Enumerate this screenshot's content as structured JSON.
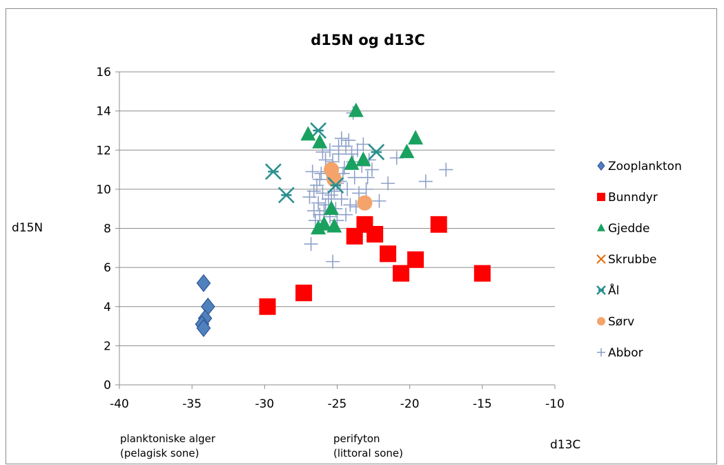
{
  "chart_data": {
    "type": "scatter",
    "title": "d15N og d13C",
    "xlabel": "d13C",
    "ylabel": "d15N",
    "xlim": [
      -40,
      -10
    ],
    "ylim": [
      0,
      16
    ],
    "xticks": [
      -40,
      -35,
      -30,
      -25,
      -20,
      -15,
      -10
    ],
    "yticks": [
      0,
      2,
      4,
      6,
      8,
      10,
      12,
      14,
      16
    ],
    "grid": "horizontal",
    "legend_position": "right",
    "annotations": [
      {
        "text": "planktoniske alger",
        "text2": "(pelagisk sone)"
      },
      {
        "text": "perifyton",
        "text2": "(littoral sone)"
      }
    ],
    "series": [
      {
        "name": "Zooplankton",
        "marker": "diamond",
        "color": "#4f81bd",
        "points": [
          [
            -34.2,
            5.2
          ],
          [
            -33.9,
            4.0
          ],
          [
            -34.1,
            3.4
          ],
          [
            -34.3,
            3.1
          ],
          [
            -34.2,
            2.9
          ]
        ]
      },
      {
        "name": "Bunndyr",
        "marker": "square",
        "color": "#ff0000",
        "points": [
          [
            -29.8,
            4.0
          ],
          [
            -27.3,
            4.7
          ],
          [
            -23.8,
            7.6
          ],
          [
            -23.1,
            8.2
          ],
          [
            -22.4,
            7.7
          ],
          [
            -21.5,
            6.7
          ],
          [
            -20.6,
            5.7
          ],
          [
            -19.6,
            6.4
          ],
          [
            -18.0,
            8.2
          ],
          [
            -15.0,
            5.7
          ]
        ]
      },
      {
        "name": "Gjedde",
        "marker": "triangle",
        "color": "#1aa160",
        "points": [
          [
            -27.0,
            12.8
          ],
          [
            -26.2,
            12.4
          ],
          [
            -23.7,
            14.0
          ],
          [
            -20.2,
            11.9
          ],
          [
            -19.6,
            12.6
          ],
          [
            -25.9,
            8.2
          ],
          [
            -26.3,
            8.0
          ],
          [
            -25.2,
            8.1
          ],
          [
            -24.0,
            11.3
          ],
          [
            -23.2,
            11.5
          ],
          [
            -25.4,
            9.0
          ]
        ]
      },
      {
        "name": "Skrubbe",
        "marker": "x",
        "color": "#e36c09",
        "points": []
      },
      {
        "name": "Ål",
        "marker": "asterisk",
        "color": "#2a8f8f",
        "points": [
          [
            -29.4,
            10.9
          ],
          [
            -28.5,
            9.7
          ],
          [
            -26.3,
            13.0
          ],
          [
            -22.3,
            11.9
          ],
          [
            -25.1,
            10.2
          ]
        ]
      },
      {
        "name": "Sørv",
        "marker": "circle",
        "color": "#f4a36a",
        "points": [
          [
            -23.1,
            9.3
          ],
          [
            -25.4,
            11.0
          ],
          [
            -25.2,
            10.5
          ]
        ]
      },
      {
        "name": "Abbor",
        "marker": "plus",
        "color": "#8ea0c9",
        "points": [
          [
            -26.8,
            7.2
          ],
          [
            -25.3,
            6.3
          ],
          [
            -23.9,
            13.9
          ],
          [
            -21.5,
            10.3
          ],
          [
            -20.9,
            11.6
          ],
          [
            -18.9,
            10.4
          ],
          [
            -17.5,
            11.0
          ],
          [
            -22.1,
            9.4
          ],
          [
            -23.0,
            10.0
          ],
          [
            -22.6,
            11.0
          ],
          [
            -24.2,
            12.5
          ],
          [
            -24.9,
            12.2
          ],
          [
            -25.8,
            11.5
          ],
          [
            -26.1,
            10.8
          ],
          [
            -26.4,
            10.2
          ],
          [
            -26.0,
            9.8
          ],
          [
            -25.6,
            9.5
          ],
          [
            -25.2,
            9.9
          ],
          [
            -24.8,
            10.4
          ],
          [
            -24.5,
            11.1
          ],
          [
            -24.0,
            11.8
          ],
          [
            -23.6,
            12.0
          ],
          [
            -23.3,
            11.2
          ],
          [
            -23.8,
            10.6
          ],
          [
            -24.3,
            10.0
          ],
          [
            -24.7,
            9.5
          ],
          [
            -25.1,
            9.0
          ],
          [
            -25.5,
            8.6
          ],
          [
            -25.9,
            8.9
          ],
          [
            -26.3,
            9.3
          ],
          [
            -26.6,
            9.9
          ],
          [
            -26.2,
            10.5
          ],
          [
            -25.7,
            10.9
          ],
          [
            -25.3,
            11.4
          ],
          [
            -24.9,
            11.8
          ],
          [
            -24.4,
            12.2
          ],
          [
            -23.9,
            11.4
          ],
          [
            -24.6,
            10.8
          ],
          [
            -25.0,
            10.3
          ],
          [
            -25.4,
            9.7
          ],
          [
            -25.8,
            9.2
          ],
          [
            -26.2,
            8.7
          ],
          [
            -26.5,
            8.4
          ],
          [
            -24.1,
            9.2
          ],
          [
            -23.5,
            9.8
          ],
          [
            -22.9,
            10.6
          ],
          [
            -23.2,
            12.3
          ],
          [
            -24.7,
            12.6
          ],
          [
            -25.5,
            12.0
          ],
          [
            -26.0,
            11.9
          ],
          [
            -26.7,
            10.9
          ],
          [
            -26.9,
            9.6
          ],
          [
            -26.6,
            8.9
          ],
          [
            -25.0,
            8.4
          ],
          [
            -24.4,
            8.7
          ],
          [
            -23.7,
            9.1
          ],
          [
            -22.8,
            11.5
          ]
        ]
      }
    ]
  }
}
